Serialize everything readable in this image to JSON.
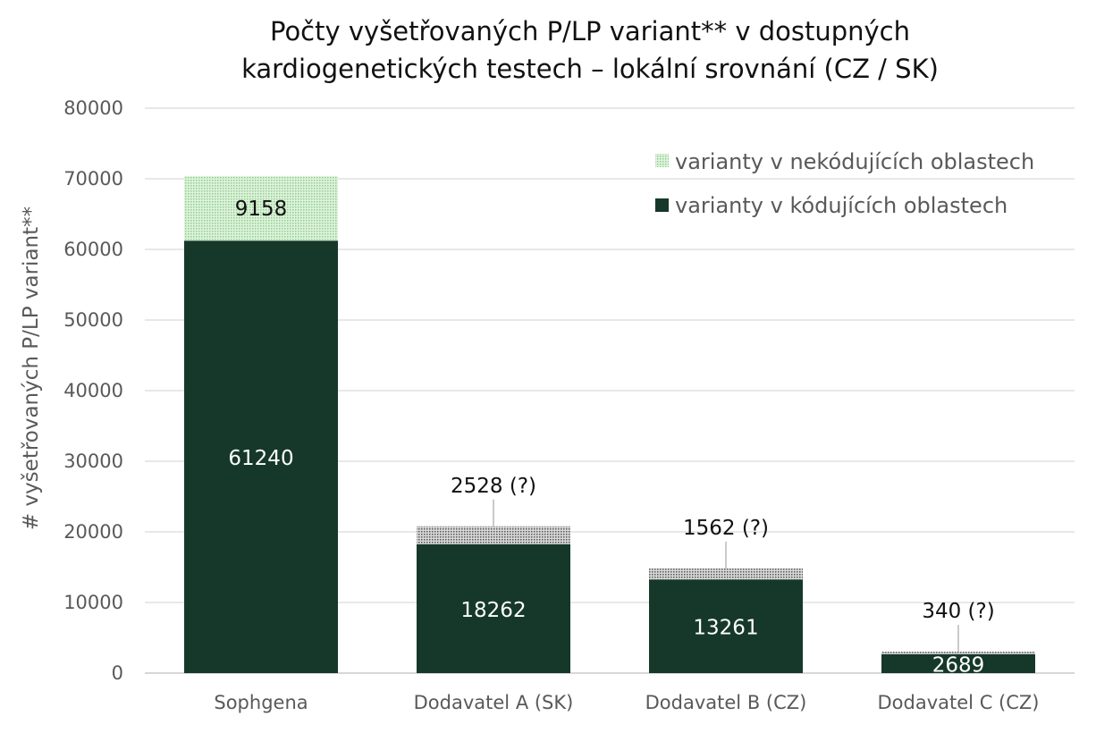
{
  "chart_data": {
    "type": "bar",
    "stacked": true,
    "title_lines": [
      "Počty vyšetřovaných P/LP variant** v dostupných",
      "kardiogenetických testech – lokální srovnání (CZ / SK)"
    ],
    "xlabel": "",
    "ylabel": "# vyšetřovaných P/LP variant**",
    "ylim": [
      0,
      80000
    ],
    "yticks": [
      0,
      10000,
      20000,
      30000,
      40000,
      50000,
      60000,
      70000,
      80000
    ],
    "grid": true,
    "legend_position": "top-right",
    "categories": [
      "Sophgena",
      "Dodavatel A (SK)",
      "Dodavatel B (CZ)",
      "Dodavatel C (CZ)"
    ],
    "series": [
      {
        "name": "varianty v kódujících oblastech",
        "color": "#16382a",
        "values": [
          61240,
          18262,
          13261,
          2689
        ],
        "labels": [
          "61240",
          "18262",
          "13261",
          "2689"
        ]
      },
      {
        "name": "varianty v nekódujících oblastech",
        "color": "#a6d8a4",
        "values": [
          9158,
          2528,
          1562,
          340
        ],
        "labels": [
          "9158",
          "2528 (?)",
          "1562 (?)",
          "340 (?)"
        ]
      }
    ]
  }
}
